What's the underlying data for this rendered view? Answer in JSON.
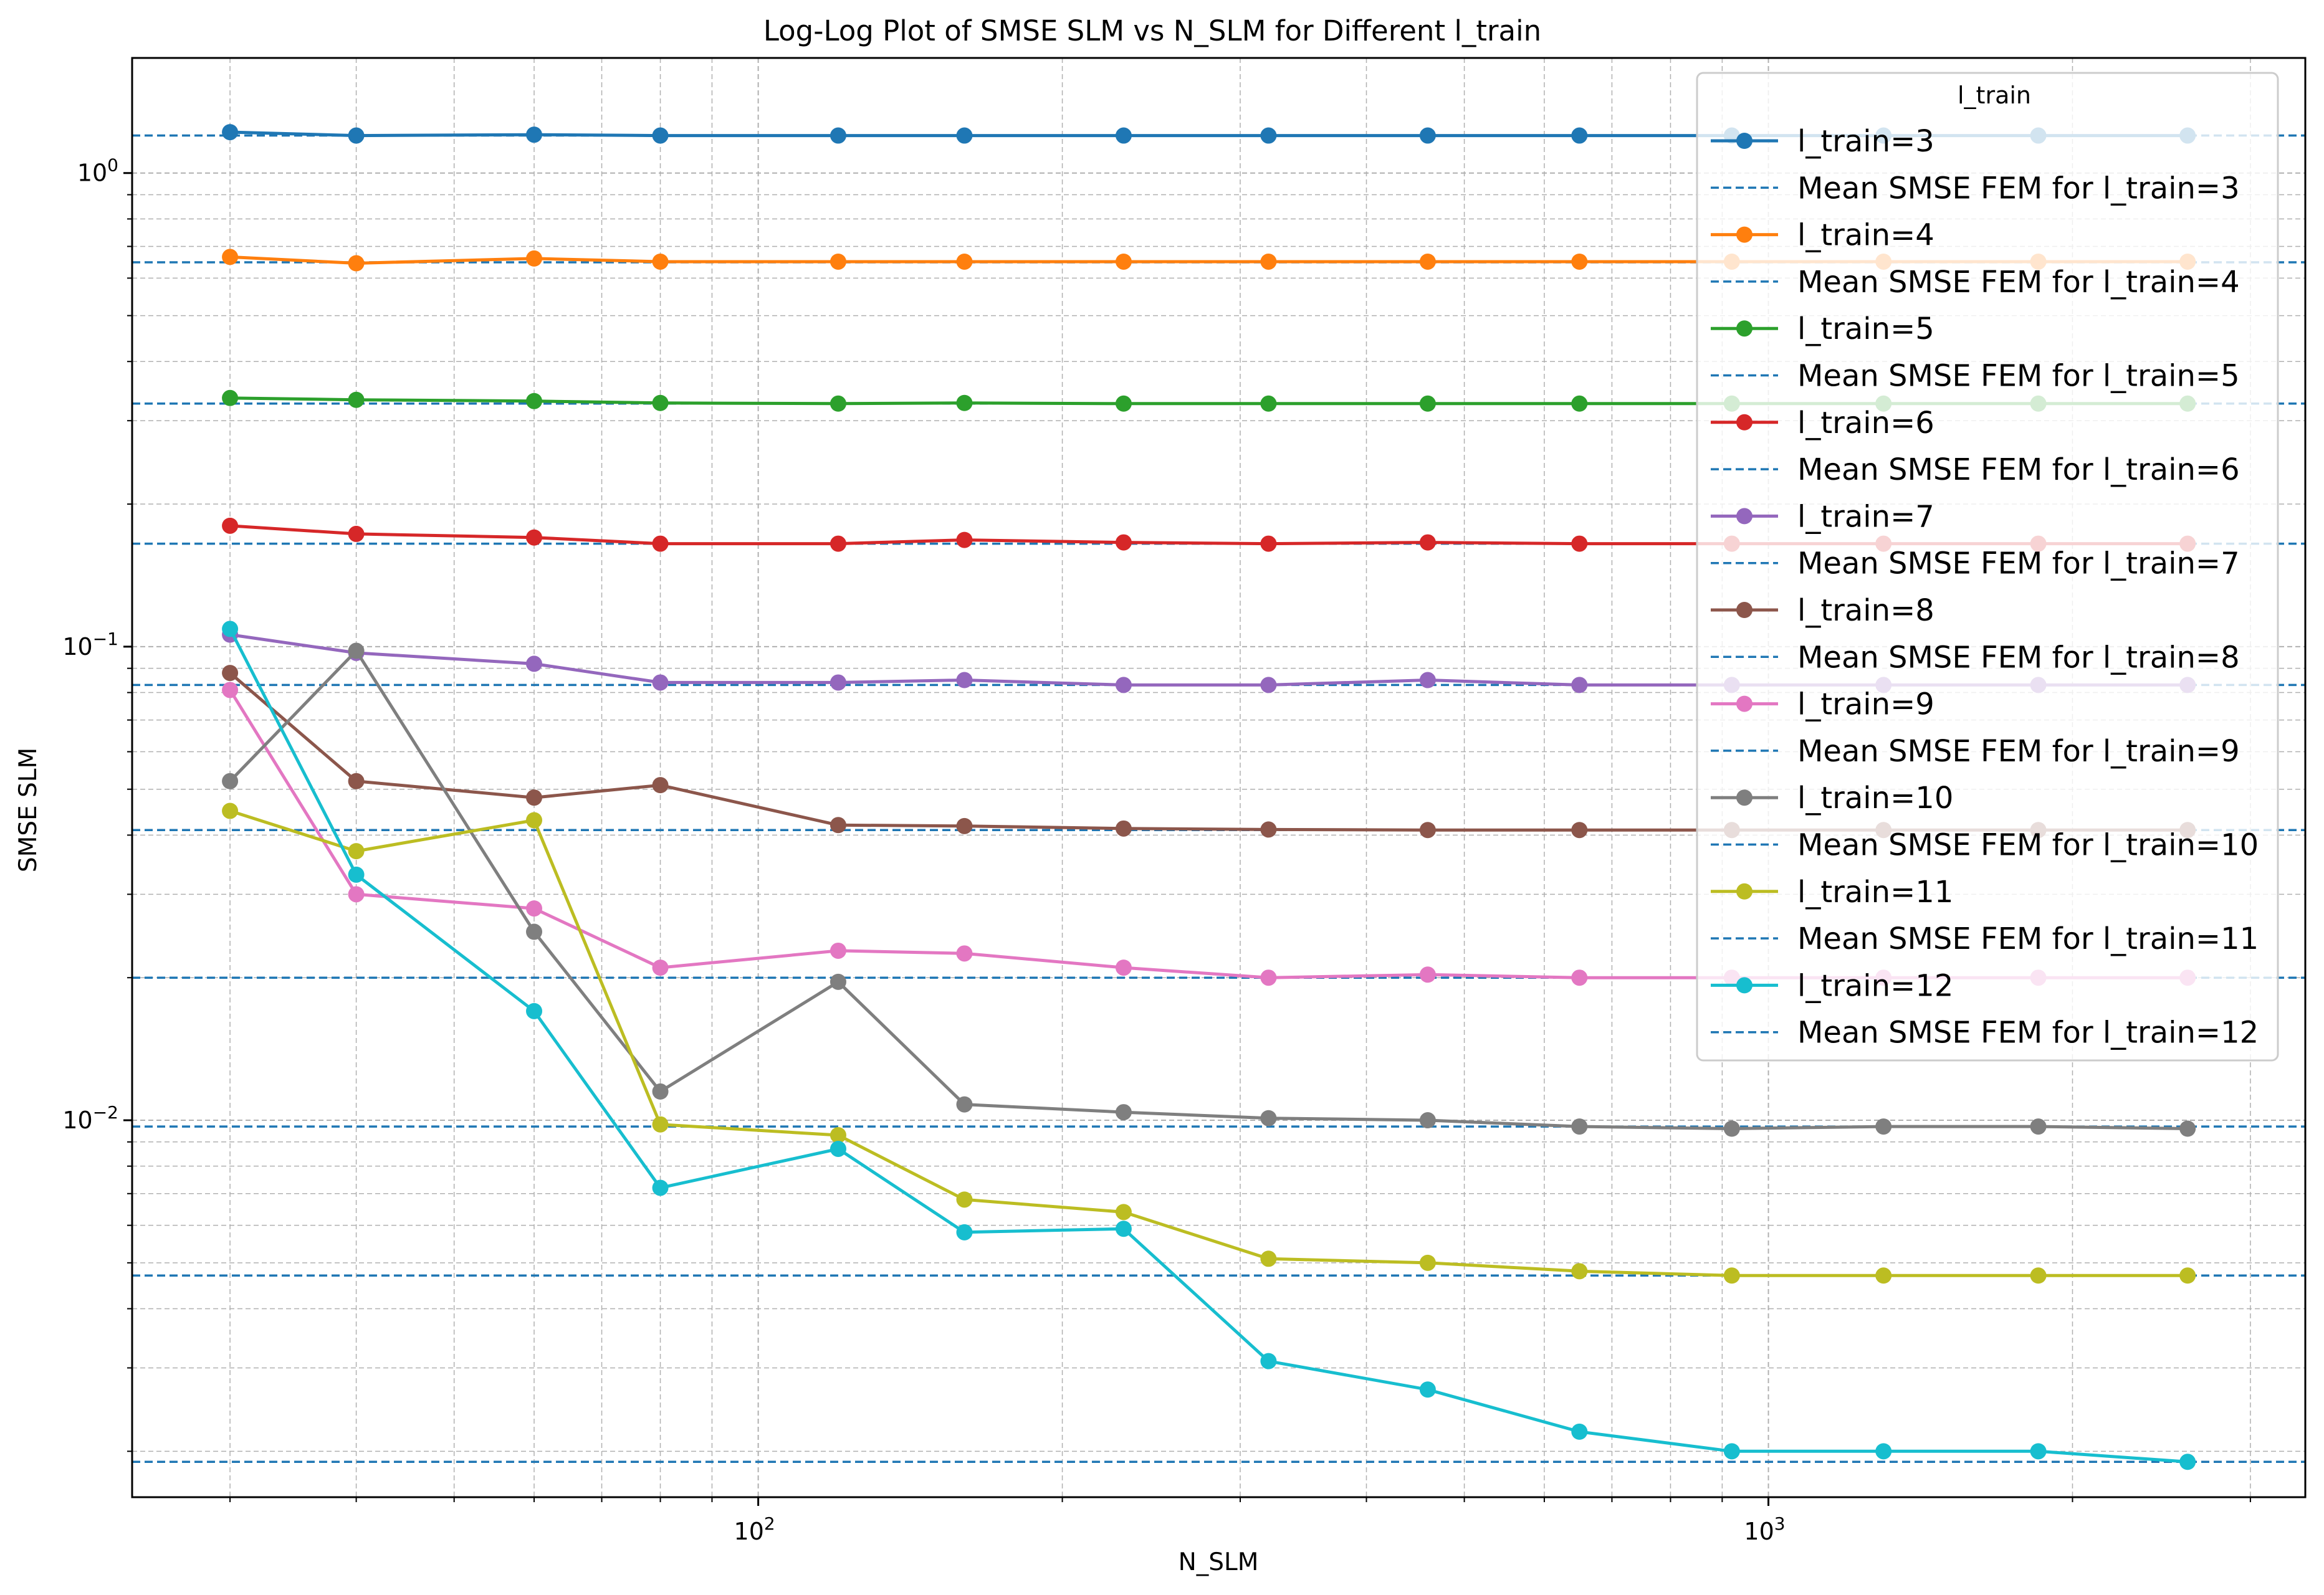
{
  "chart_data": {
    "type": "line",
    "title": "Log-Log Plot of SMSE SLM vs N_SLM for Different l_train",
    "xlabel": "N_SLM",
    "ylabel": "SMSE SLM",
    "xscale": "log",
    "yscale": "log",
    "xlim": [
      24,
      3400
    ],
    "ylim": [
      0.0016,
      1.75
    ],
    "grid": true,
    "legend": {
      "title": "l_train",
      "placement": "top-right"
    },
    "xticks": [
      {
        "value": 100,
        "base": "10",
        "exp": "2"
      },
      {
        "value": 1000,
        "base": "10",
        "exp": "3"
      }
    ],
    "yticks": [
      {
        "value": 0.01,
        "base": "10",
        "exp": "−2"
      },
      {
        "value": 0.1,
        "base": "10",
        "exp": "−1"
      },
      {
        "value": 1,
        "base": "10",
        "exp": "0"
      }
    ],
    "x": [
      30,
      40,
      60,
      80,
      120,
      160,
      230,
      320,
      460,
      650,
      920,
      1300,
      1850,
      2600
    ],
    "series": [
      {
        "name": "l_train=3",
        "color": "#1f77b4",
        "values": [
          1.22,
          1.2,
          1.205,
          1.2,
          1.2,
          1.2,
          1.2,
          1.2,
          1.2,
          1.2,
          1.2,
          1.2,
          1.2,
          1.2
        ]
      },
      {
        "name": "l_train=4",
        "color": "#ff7f0e",
        "values": [
          0.665,
          0.645,
          0.66,
          0.65,
          0.65,
          0.65,
          0.65,
          0.65,
          0.65,
          0.65,
          0.65,
          0.65,
          0.65,
          0.65
        ]
      },
      {
        "name": "l_train=5",
        "color": "#2ca02c",
        "values": [
          0.335,
          0.332,
          0.33,
          0.327,
          0.326,
          0.327,
          0.326,
          0.326,
          0.326,
          0.326,
          0.326,
          0.326,
          0.326,
          0.326
        ]
      },
      {
        "name": "l_train=6",
        "color": "#d62728",
        "values": [
          0.18,
          0.173,
          0.17,
          0.165,
          0.165,
          0.168,
          0.166,
          0.165,
          0.166,
          0.165,
          0.165,
          0.165,
          0.165,
          0.165
        ]
      },
      {
        "name": "l_train=7",
        "color": "#9467bd",
        "values": [
          0.106,
          0.097,
          0.092,
          0.084,
          0.084,
          0.085,
          0.083,
          0.083,
          0.085,
          0.083,
          0.083,
          0.083,
          0.083,
          0.083
        ]
      },
      {
        "name": "l_train=8",
        "color": "#8c564b",
        "values": [
          0.088,
          0.052,
          0.048,
          0.051,
          0.042,
          0.0418,
          0.0413,
          0.0411,
          0.041,
          0.041,
          0.041,
          0.041,
          0.041,
          0.041
        ]
      },
      {
        "name": "l_train=9",
        "color": "#e377c2",
        "values": [
          0.081,
          0.03,
          0.028,
          0.021,
          0.0228,
          0.0225,
          0.021,
          0.02,
          0.0203,
          0.02,
          0.02,
          0.02,
          0.02,
          0.02
        ]
      },
      {
        "name": "l_train=10",
        "color": "#7f7f7f",
        "values": [
          0.052,
          0.098,
          0.025,
          0.0115,
          0.0196,
          0.0108,
          0.0104,
          0.0101,
          0.01,
          0.0097,
          0.0096,
          0.0097,
          0.0097,
          0.0096
        ]
      },
      {
        "name": "l_train=11",
        "color": "#bcbd22",
        "values": [
          0.045,
          0.037,
          0.043,
          0.0098,
          0.0093,
          0.0068,
          0.0064,
          0.0051,
          0.005,
          0.0048,
          0.0047,
          0.0047,
          0.0047,
          0.0047
        ]
      },
      {
        "name": "l_train=12",
        "color": "#17becf",
        "values": [
          0.109,
          0.033,
          0.017,
          0.0072,
          0.0087,
          0.0058,
          0.0059,
          0.0031,
          0.0027,
          0.0022,
          0.002,
          0.002,
          0.002,
          0.0019
        ]
      }
    ],
    "reference_lines": {
      "style": "dashed",
      "color": "#1f77b4",
      "items": [
        {
          "name": "Mean SMSE FEM for l_train=3",
          "y": 1.2
        },
        {
          "name": "Mean SMSE FEM for l_train=4",
          "y": 0.648
        },
        {
          "name": "Mean SMSE FEM for l_train=5",
          "y": 0.326
        },
        {
          "name": "Mean SMSE FEM for l_train=6",
          "y": 0.165
        },
        {
          "name": "Mean SMSE FEM for l_train=7",
          "y": 0.083
        },
        {
          "name": "Mean SMSE FEM for l_train=8",
          "y": 0.041
        },
        {
          "name": "Mean SMSE FEM for l_train=9",
          "y": 0.02
        },
        {
          "name": "Mean SMSE FEM for l_train=10",
          "y": 0.0097
        },
        {
          "name": "Mean SMSE FEM for l_train=11",
          "y": 0.0047
        },
        {
          "name": "Mean SMSE FEM for l_train=12",
          "y": 0.0019
        }
      ]
    }
  }
}
